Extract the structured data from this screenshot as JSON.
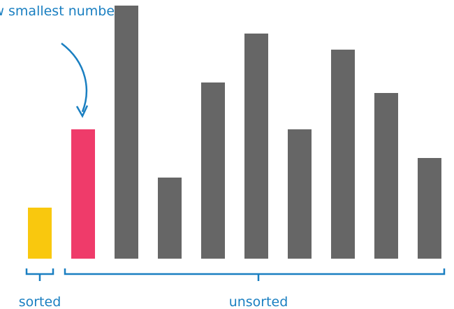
{
  "chart_data": {
    "type": "bar",
    "annotation": "New smallest number!",
    "categories": [
      null,
      null,
      null,
      null,
      null,
      null,
      null,
      null,
      null,
      null
    ],
    "values": [
      73,
      185,
      362,
      116,
      252,
      322,
      185,
      299,
      237,
      144
    ],
    "colors": [
      "#f9c80e",
      "#ef3b6a",
      "#666666",
      "#666666",
      "#666666",
      "#666666",
      "#666666",
      "#666666",
      "#666666",
      "#666666"
    ],
    "ylim": [
      0,
      370
    ],
    "group_labels": [
      "sorted",
      "unsorted"
    ]
  }
}
